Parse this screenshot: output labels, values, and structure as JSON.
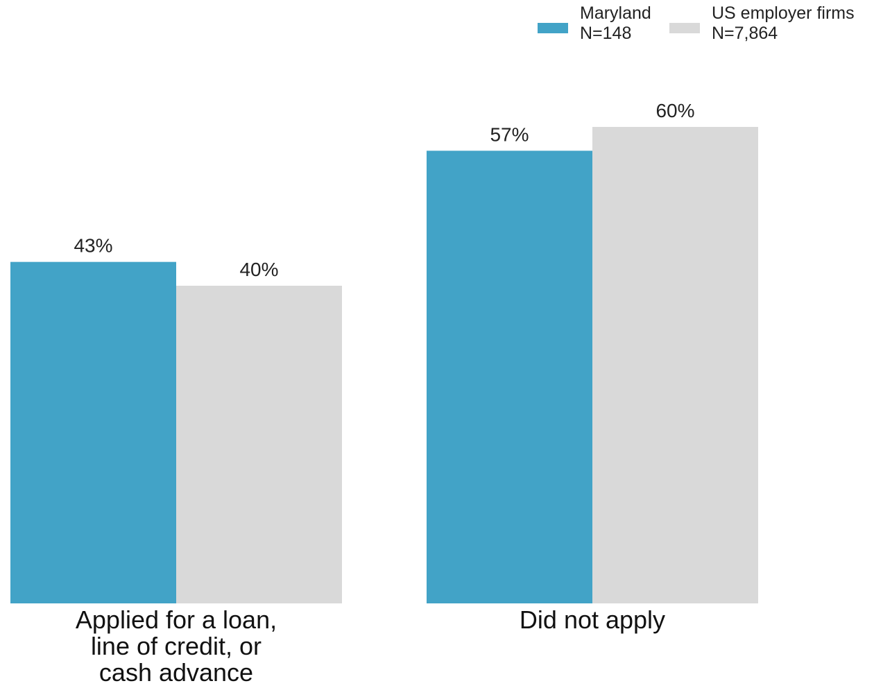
{
  "chart_data": {
    "type": "bar",
    "title": "",
    "xlabel": "",
    "ylabel": "",
    "ylim": [
      0,
      60
    ],
    "grid": false,
    "legend_position": "top-right",
    "categories": [
      [
        "Applied for a loan,",
        "line of credit, or",
        "cash advance"
      ],
      [
        "Did not apply"
      ]
    ],
    "series": [
      {
        "name": "Maryland",
        "legend_lines": [
          "Maryland",
          "N=148"
        ],
        "color": "#42a3c7",
        "values": [
          43,
          57
        ],
        "labels": [
          "43%",
          "57%"
        ]
      },
      {
        "name": "US employer firms",
        "legend_lines": [
          "US employer firms",
          "N=7,864"
        ],
        "color": "#d9d9d9",
        "values": [
          40,
          60
        ],
        "labels": [
          "40%",
          "60%"
        ]
      }
    ]
  }
}
